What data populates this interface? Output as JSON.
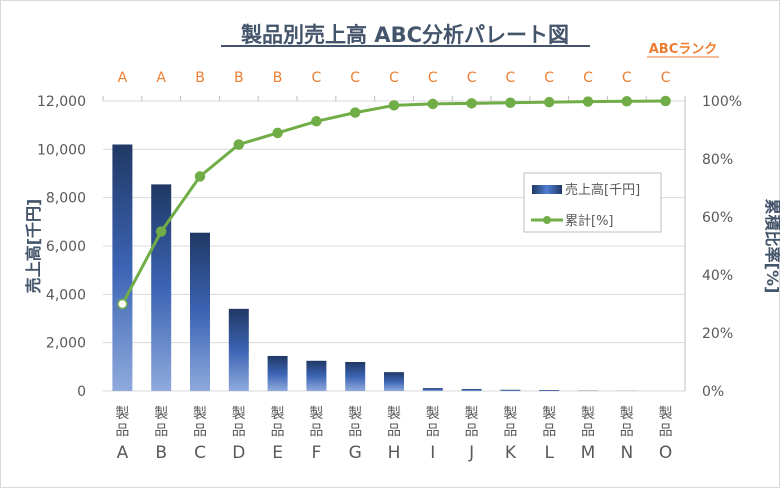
{
  "chart_data": {
    "type": "bar+line",
    "title": "製品別売上高 ABC分析パレート図",
    "rank_label": "ABCランク",
    "categories": [
      "製品A",
      "製品B",
      "製品C",
      "製品D",
      "製品E",
      "製品F",
      "製品G",
      "製品H",
      "製品I",
      "製品J",
      "製品K",
      "製品L",
      "製品M",
      "製品N",
      "製品O"
    ],
    "category_letters": [
      "A",
      "B",
      "C",
      "D",
      "E",
      "F",
      "G",
      "H",
      "I",
      "J",
      "K",
      "L",
      "M",
      "N",
      "O"
    ],
    "category_prefix": "製品",
    "ranks": [
      "A",
      "A",
      "B",
      "B",
      "B",
      "C",
      "C",
      "C",
      "C",
      "C",
      "C",
      "C",
      "C",
      "C",
      "C"
    ],
    "series": [
      {
        "name": "売上高[千円]",
        "type": "bar",
        "axis": "left",
        "values": [
          10200,
          8550,
          6550,
          3400,
          1450,
          1250,
          1200,
          780,
          120,
          80,
          50,
          40,
          10,
          5,
          0
        ]
      },
      {
        "name": "累計[%]",
        "type": "line",
        "axis": "right",
        "values": [
          30,
          55,
          74,
          85,
          89,
          93,
          96,
          98.5,
          99,
          99.2,
          99.4,
          99.6,
          99.8,
          99.9,
          100
        ]
      }
    ],
    "ylabel": "売上高[千円]",
    "y2label": "累積比率[%]",
    "ylim": [
      0,
      12000
    ],
    "yticks": [
      "0",
      "2,000",
      "4,000",
      "6,000",
      "8,000",
      "10,000",
      "12,000"
    ],
    "y2lim": [
      0,
      100
    ],
    "y2ticks": [
      "0%",
      "20%",
      "40%",
      "60%",
      "80%",
      "100%"
    ],
    "grid": true,
    "legend": "right",
    "colors": {
      "bar_top": "#203864",
      "bar_bottom": "#8faadc",
      "line": "#70ad47",
      "rank": "#ed7d31",
      "text": "#44546a",
      "grid": "#d9d9d9"
    }
  }
}
